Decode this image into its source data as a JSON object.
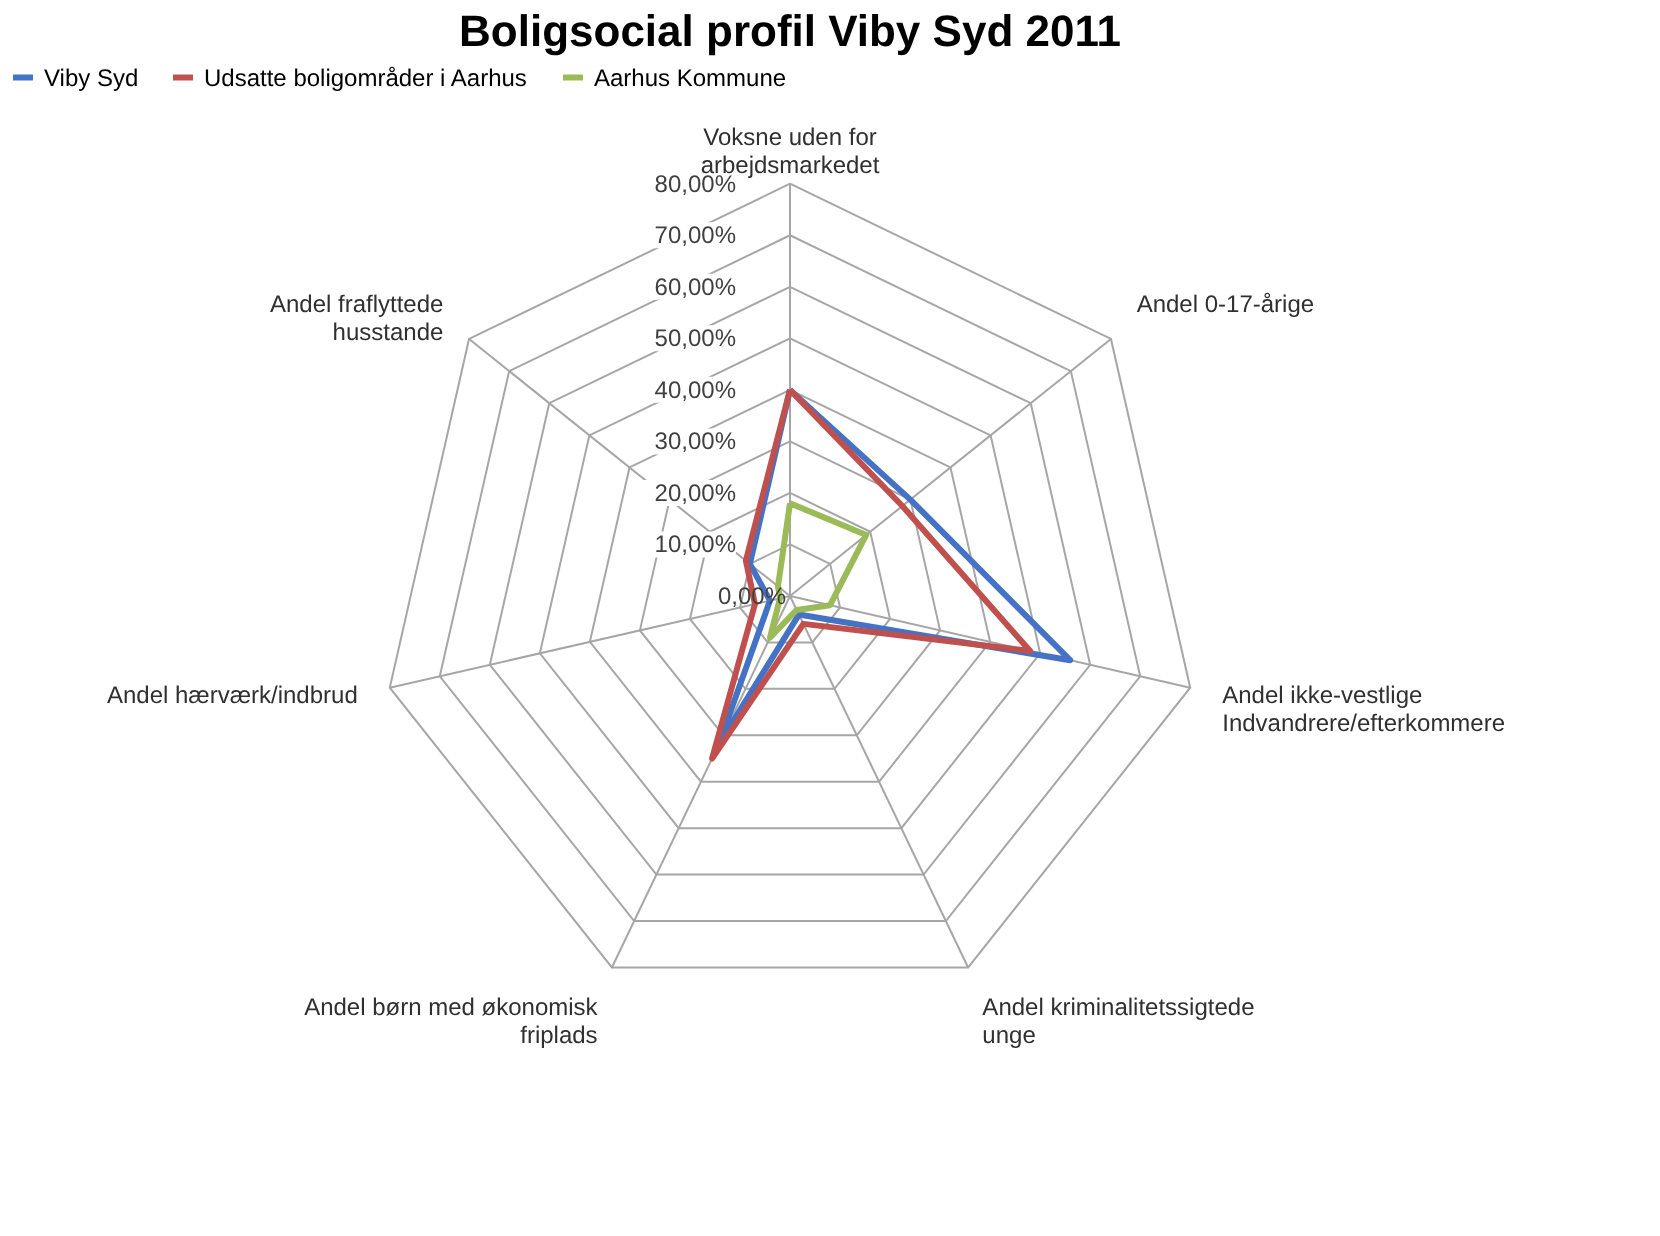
{
  "chart_data": {
    "type": "radar",
    "title": "Boligsocial profil Viby Syd 2011",
    "categories": [
      "Voksne uden for arbejdsmarkedet",
      "Andel 0-17-årige",
      "Andel ikke-vestlige Indvandrere/efterkommere",
      "Andel kriminalitetssigtede unge",
      "Andel børn med økonomisk friplads",
      "Andel hærværk/indbrud",
      "Andel fraflyttede husstande"
    ],
    "series": [
      {
        "name": "Viby Syd",
        "color": "#4472c4",
        "values": [
          40,
          30,
          56,
          4,
          32,
          4,
          10
        ]
      },
      {
        "name": "Udsatte boligområder i Aarhus",
        "color": "#c0504d",
        "values": [
          40,
          28,
          48,
          6,
          35,
          7,
          11
        ]
      },
      {
        "name": "Aarhus Kommune",
        "color": "#9bbb59",
        "values": [
          18,
          19,
          8,
          3,
          9,
          2,
          3
        ]
      }
    ],
    "ylim": [
      0,
      80
    ],
    "yticks": [
      {
        "value": 0,
        "label": "0,00%"
      },
      {
        "value": 10,
        "label": "10,00%"
      },
      {
        "value": 20,
        "label": "20,00%"
      },
      {
        "value": 30,
        "label": "30,00%"
      },
      {
        "value": 40,
        "label": "40,00%"
      },
      {
        "value": 50,
        "label": "50,00%"
      },
      {
        "value": 60,
        "label": "60,00%"
      },
      {
        "value": 70,
        "label": "70,00%"
      },
      {
        "value": 80,
        "label": "80,00%"
      }
    ],
    "grid": true,
    "legend": "top",
    "marker": "none"
  }
}
